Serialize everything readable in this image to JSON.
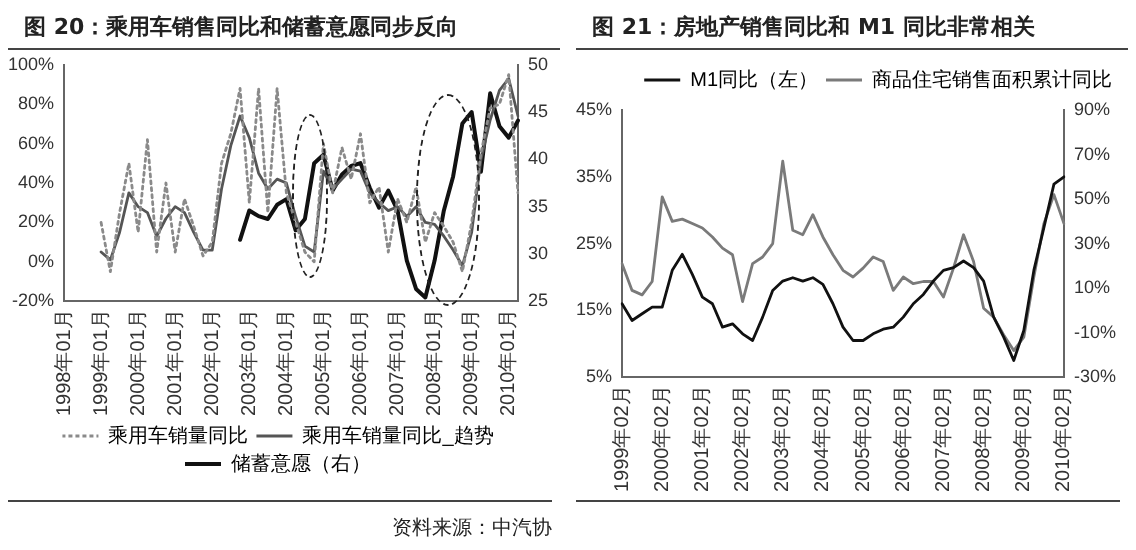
{
  "chart_data": [
    {
      "type": "line",
      "title": "图 20：乘用车销售同比和储蓄意愿同步反向",
      "categories": [
        "1998年01月",
        null,
        null,
        null,
        "1999年01月",
        null,
        null,
        null,
        "2000年01月",
        null,
        null,
        null,
        "2001年01月",
        null,
        null,
        null,
        "2002年01月",
        null,
        null,
        null,
        "2003年01月",
        null,
        null,
        null,
        "2004年01月",
        null,
        null,
        null,
        "2005年01月",
        null,
        null,
        null,
        "2006年01月",
        null,
        null,
        null,
        "2007年01月",
        null,
        null,
        null,
        "2008年01月",
        null,
        null,
        null,
        "2009年01月",
        null,
        null,
        null,
        "2010年01月",
        null
      ],
      "series": [
        {
          "name": "乘用车销量同比",
          "color": "#8a8a8a",
          "line_style": "dotted",
          "axis": "y",
          "values": [
            null,
            null,
            null,
            null,
            20,
            -5,
            25,
            50,
            15,
            62,
            5,
            40,
            5,
            32,
            18,
            3,
            10,
            50,
            65,
            88,
            30,
            88,
            25,
            88,
            35,
            20,
            5,
            0,
            60,
            35,
            58,
            42,
            65,
            30,
            38,
            5,
            32,
            20,
            38,
            10,
            25,
            18,
            10,
            -5,
            20,
            55,
            78,
            80,
            95,
            35
          ]
        },
        {
          "name": "乘用车销量同比_趋势",
          "color": "#555555",
          "line_style": "solid",
          "axis": "y",
          "values": [
            null,
            null,
            null,
            null,
            5,
            1,
            15,
            35,
            28,
            25,
            13,
            22,
            28,
            25,
            15,
            6,
            6,
            37,
            59,
            74,
            63,
            45,
            37,
            42,
            40,
            23,
            8,
            5,
            46,
            37,
            42,
            47,
            46,
            35,
            30,
            26,
            28,
            23,
            28,
            20,
            19,
            13,
            6,
            -2,
            15,
            52,
            72,
            87,
            93,
            74
          ]
        },
        {
          "name": "储蓄意愿（右）",
          "color": "#111111",
          "line_style": "solid",
          "axis": "y2",
          "values": [
            null,
            null,
            null,
            null,
            null,
            null,
            null,
            null,
            null,
            null,
            null,
            null,
            null,
            null,
            null,
            null,
            null,
            null,
            null,
            31.5,
            34.6,
            34,
            33.7,
            35.2,
            35.8,
            32.5,
            33.7,
            39.6,
            40.5,
            36.7,
            38.4,
            39.3,
            39.6,
            37,
            34.9,
            36.7,
            34.6,
            29.3,
            26.3,
            25.4,
            29.3,
            34.6,
            38.2,
            43.8,
            45,
            38.7,
            47,
            43.5,
            42.3,
            44.1
          ]
        }
      ],
      "ylim": [
        -20,
        100
      ],
      "yticks": [
        {
          "value": -20,
          "label": "-20%"
        },
        {
          "value": 0,
          "label": "0%"
        },
        {
          "value": 20,
          "label": "20%"
        },
        {
          "value": 40,
          "label": "40%"
        },
        {
          "value": 60,
          "label": "60%"
        },
        {
          "value": 80,
          "label": "80%"
        },
        {
          "value": 100,
          "label": "100%"
        }
      ],
      "y2lim": [
        25,
        50
      ],
      "y2ticks": [
        25,
        30,
        35,
        40,
        45,
        50
      ],
      "legend": "bottom",
      "grid": false,
      "annotations": [
        "资料来源：中汽协"
      ]
    },
    {
      "type": "line",
      "title": "图 21：房地产销售同比和 M1 同比非常相关",
      "categories": [
        "1999年02月",
        null,
        null,
        null,
        "2000年02月",
        null,
        null,
        null,
        "2001年02月",
        null,
        null,
        null,
        "2002年02月",
        null,
        null,
        null,
        "2003年02月",
        null,
        null,
        null,
        "2004年02月",
        null,
        null,
        null,
        "2005年02月",
        null,
        null,
        null,
        "2006年02月",
        null,
        null,
        null,
        "2007年02月",
        null,
        null,
        null,
        "2008年02月",
        null,
        null,
        null,
        "2009年02月",
        null,
        null,
        null,
        "2010年02月"
      ],
      "series": [
        {
          "name": "M1同比（左）",
          "color": "#111111",
          "line_style": "solid",
          "axis": "y",
          "values": [
            16,
            13.5,
            14.5,
            15.5,
            15.5,
            21,
            23.4,
            20.4,
            17,
            16,
            12.5,
            13,
            11.5,
            10.5,
            14,
            18,
            19.4,
            19.9,
            19.4,
            19.9,
            18.9,
            16,
            12.5,
            10.5,
            10.5,
            11.5,
            12.2,
            12.5,
            14,
            16,
            17.4,
            19.4,
            21,
            21.4,
            22.4,
            21.4,
            19.4,
            14,
            11,
            7.5,
            12,
            21,
            27.4,
            33.9,
            35
          ]
        },
        {
          "name": "商品住宅销售面积累计同比",
          "color": "#7a7a7a",
          "line_style": "solid",
          "axis": "y2",
          "values": [
            21,
            9,
            7,
            13,
            51,
            40,
            41,
            39,
            37,
            33,
            28,
            25,
            4,
            21,
            24,
            30,
            67,
            36,
            34,
            43,
            33,
            25,
            18,
            15,
            19,
            24,
            22,
            9,
            15,
            12,
            13,
            13,
            6,
            19,
            34,
            22,
            1,
            -3,
            -11,
            -18,
            -12,
            15,
            39,
            52,
            39
          ]
        }
      ],
      "ylim": [
        5,
        45
      ],
      "yticks": [
        {
          "value": 5,
          "label": "5%"
        },
        {
          "value": 15,
          "label": "15%"
        },
        {
          "value": 25,
          "label": "25%"
        },
        {
          "value": 35,
          "label": "35%"
        },
        {
          "value": 45,
          "label": "45%"
        }
      ],
      "y2lim": [
        -30,
        90
      ],
      "y2ticks": [
        {
          "value": -30,
          "label": "-30%"
        },
        {
          "value": -10,
          "label": "-10%"
        },
        {
          "value": 10,
          "label": "10%"
        },
        {
          "value": 30,
          "label": "30%"
        },
        {
          "value": 50,
          "label": "50%"
        },
        {
          "value": 70,
          "label": "70%"
        },
        {
          "value": 90,
          "label": "90%"
        }
      ],
      "legend": "top right",
      "grid": false
    }
  ]
}
